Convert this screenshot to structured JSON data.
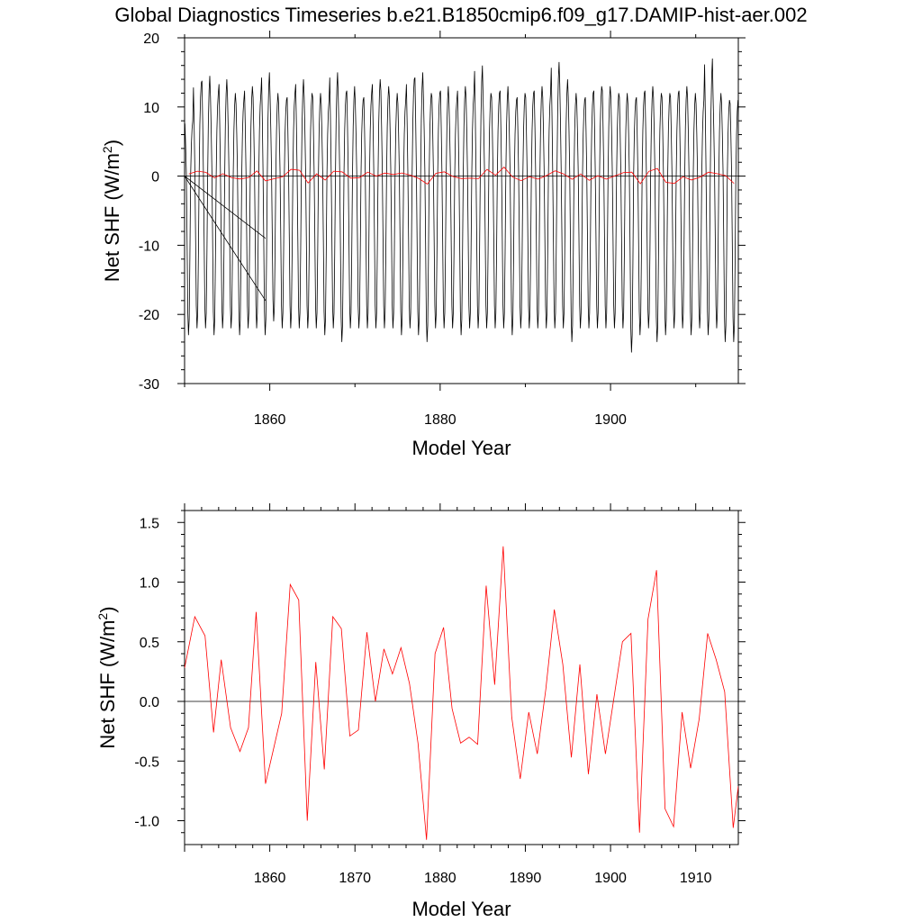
{
  "chart_data": [
    {
      "type": "line",
      "title": "Global Diagnostics Timeseries b.e21.B1850cmip6.f09_g17.DAMIP-hist-aer.002",
      "xlabel": "Model Year",
      "ylabel": "Net SHF (W/m",
      "ylabel_sup": "2",
      "ylabel_end": ")",
      "xlim": [
        1850,
        1915
      ],
      "ylim": [
        -30,
        20
      ],
      "xticks": [
        1860,
        1880,
        1900
      ],
      "yticks": [
        -30,
        -20,
        -10,
        0,
        10,
        20
      ],
      "reference_line": 0,
      "series": [
        {
          "color": "#000000",
          "monthly_peaks": [
            8,
            13.5,
            14.5,
            12,
            14,
            12,
            11,
            13,
            12,
            15,
            12,
            11,
            12,
            14,
            12,
            12,
            11,
            15,
            12,
            13,
            11,
            12,
            14,
            13,
            12,
            11,
            14,
            15,
            12,
            12,
            13,
            11,
            13,
            12,
            16,
            12,
            12,
            13,
            11,
            12,
            12,
            13,
            12,
            16.5,
            14,
            12,
            11,
            12,
            13,
            13,
            12,
            12,
            11,
            12,
            13,
            12,
            12,
            12,
            13,
            12,
            11,
            17,
            12,
            11,
            11
          ],
          "monthly_troughs": [
            -23,
            -22,
            -22,
            -23,
            -22,
            -22,
            -23,
            -22,
            -22,
            -23,
            -21,
            -22,
            -22,
            -22,
            -22,
            -22,
            -23,
            -22,
            -24,
            -22,
            -22,
            -22,
            -22,
            -22,
            -22,
            -23,
            -22,
            -23,
            -24,
            -22,
            -22,
            -22,
            -23,
            -22,
            -22,
            -22,
            -22,
            -22,
            -23,
            -22,
            -22,
            -22,
            -22,
            -22,
            -22,
            -24,
            -22,
            -22,
            -22,
            -22,
            -22,
            -22,
            -25.5,
            -23,
            -22,
            -24,
            -23,
            -22,
            -22,
            -23,
            -22,
            -23,
            -22,
            -24,
            -24
          ],
          "note_lines": [
            [
              [
                1850,
                0
              ],
              [
                1859.5,
                -9
              ]
            ],
            [
              [
                1850,
                0
              ],
              [
                1859.5,
                -18
              ]
            ]
          ]
        },
        {
          "color": "#ff0000",
          "x": [
            1850.5,
            1851.5,
            1852.5,
            1853.5,
            1854.5,
            1855.5,
            1856.5,
            1857.5,
            1858.5,
            1859.5,
            1860.5,
            1861.5,
            1862.5,
            1863.5,
            1864.5,
            1865.5,
            1866.5,
            1867.5,
            1868.5,
            1869.5,
            1870.5,
            1871.5,
            1872.5,
            1873.5,
            1874.5,
            1875.5,
            1876.5,
            1877.5,
            1878.5,
            1879.5,
            1880.5,
            1881.5,
            1882.5,
            1883.5,
            1884.5,
            1885.5,
            1886.5,
            1887.5,
            1888.5,
            1889.5,
            1890.5,
            1891.5,
            1892.5,
            1893.5,
            1894.5,
            1895.5,
            1896.5,
            1897.5,
            1898.5,
            1899.5,
            1900.5,
            1901.5,
            1902.5,
            1903.5,
            1904.5,
            1905.5,
            1906.5,
            1907.5,
            1908.5,
            1909.5,
            1910.5,
            1911.5,
            1912.5,
            1913.5,
            1914.5
          ],
          "values": [
            0.3,
            0.71,
            0.55,
            -0.26,
            0.35,
            -0.22,
            -0.42,
            -0.22,
            0.75,
            -0.69,
            -0.38,
            -0.1,
            0.98,
            0.85,
            -1.0,
            0.33,
            -0.57,
            0.71,
            0.61,
            -0.29,
            -0.24,
            0.58,
            0.0,
            0.44,
            0.23,
            0.45,
            0.15,
            -0.35,
            -1.16,
            0.4,
            0.62,
            -0.06,
            -0.35,
            -0.3,
            -0.36,
            0.97,
            0.14,
            1.3,
            -0.13,
            -0.65,
            -0.09,
            -0.44,
            0.1,
            0.77,
            0.31,
            -0.47,
            0.31,
            -0.61,
            0.06,
            -0.44,
            0.03,
            0.5,
            0.57,
            -1.1,
            0.69,
            1.1,
            -0.9,
            -1.05,
            -0.09,
            -0.56,
            -0.15,
            0.57,
            0.35,
            0.08,
            -1.06
          ]
        }
      ]
    },
    {
      "type": "line",
      "xlabel": "Model Year",
      "ylabel": "Net SHF (W/m",
      "ylabel_sup": "2",
      "ylabel_end": ")",
      "xlim": [
        1850,
        1915
      ],
      "ylim": [
        -1.2,
        1.6
      ],
      "xticks": [
        1860,
        1870,
        1880,
        1890,
        1900,
        1910
      ],
      "yticks": [
        -1.0,
        -0.5,
        0.0,
        0.5,
        1.0,
        1.5
      ],
      "reference_line": 0,
      "series": [
        {
          "color": "#ff0000",
          "x": [
            1850,
            1851.2,
            1852.4,
            1853.4,
            1854.3,
            1855.4,
            1856.5,
            1857.5,
            1858.4,
            1859.5,
            1860.5,
            1861.4,
            1862.4,
            1863.4,
            1864.4,
            1865.4,
            1866.4,
            1867.4,
            1868.4,
            1869.4,
            1870.4,
            1871.4,
            1872.4,
            1873.4,
            1874.4,
            1875.4,
            1876.4,
            1877.4,
            1878.4,
            1879.4,
            1880.4,
            1881.4,
            1882.4,
            1883.4,
            1884.4,
            1885.4,
            1886.4,
            1887.4,
            1888.4,
            1889.4,
            1890.4,
            1891.4,
            1892.4,
            1893.4,
            1894.4,
            1895.4,
            1896.4,
            1897.4,
            1898.4,
            1899.4,
            1900.4,
            1901.4,
            1902.4,
            1903.4,
            1904.4,
            1905.4,
            1906.4,
            1907.4,
            1908.4,
            1909.4,
            1910.4,
            1911.4,
            1912.4,
            1913.4,
            1914.4,
            1915
          ],
          "values": [
            0.28,
            0.71,
            0.55,
            -0.26,
            0.35,
            -0.22,
            -0.42,
            -0.22,
            0.75,
            -0.69,
            -0.38,
            -0.1,
            0.98,
            0.85,
            -1.0,
            0.33,
            -0.57,
            0.71,
            0.61,
            -0.29,
            -0.24,
            0.58,
            0.0,
            0.44,
            0.23,
            0.45,
            0.15,
            -0.35,
            -1.16,
            0.4,
            0.62,
            -0.06,
            -0.35,
            -0.3,
            -0.36,
            0.97,
            0.14,
            1.3,
            -0.13,
            -0.65,
            -0.09,
            -0.44,
            0.1,
            0.77,
            0.31,
            -0.47,
            0.31,
            -0.61,
            0.06,
            -0.44,
            0.03,
            0.5,
            0.57,
            -1.1,
            0.69,
            1.1,
            -0.9,
            -1.05,
            -0.09,
            -0.56,
            -0.15,
            0.57,
            0.35,
            0.08,
            -1.06,
            -0.71
          ]
        }
      ]
    }
  ]
}
